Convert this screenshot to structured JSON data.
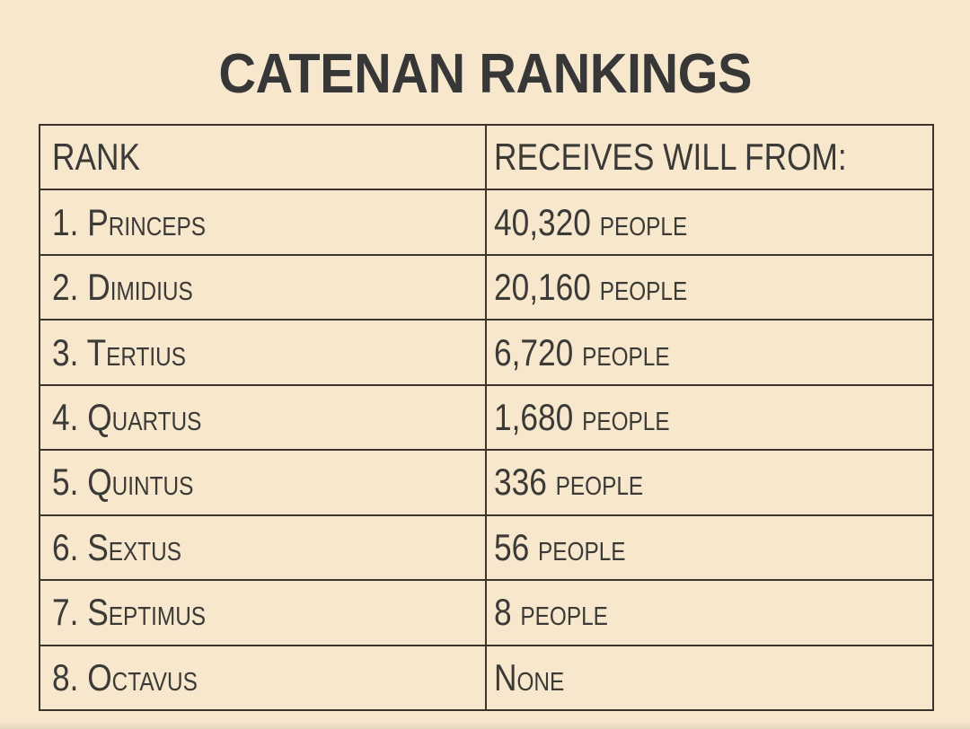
{
  "page": {
    "title": "CATENAN RANKINGS",
    "background_color": "#F7E7CD",
    "border_color": "#3B352C",
    "text_color": "#3C3A36",
    "title_color": "#373737"
  },
  "table": {
    "headers": {
      "rank": "RANK",
      "receives": "RECEIVES WILL FROM:"
    },
    "rows": [
      {
        "rank": "1. Princeps",
        "receives": "40,320 people"
      },
      {
        "rank": "2. Dimidius",
        "receives": "20,160 people"
      },
      {
        "rank": "3. Tertius",
        "receives": "6,720 people"
      },
      {
        "rank": "4. Quartus",
        "receives": "1,680 people"
      },
      {
        "rank": "5. Quintus",
        "receives": "336 people"
      },
      {
        "rank": "6. Sextus",
        "receives": "56 people"
      },
      {
        "rank": "7. Septimus",
        "receives": "8 people"
      },
      {
        "rank": "8. Octavus",
        "receives": "None"
      }
    ]
  },
  "chart_data": {
    "type": "table",
    "title": "CATENAN RANKINGS",
    "columns": [
      "RANK",
      "RECEIVES WILL FROM:"
    ],
    "rows": [
      {
        "rank": 1,
        "name": "Princeps",
        "receives_will_from": 40320,
        "display": "40,320 people"
      },
      {
        "rank": 2,
        "name": "Dimidius",
        "receives_will_from": 20160,
        "display": "20,160 people"
      },
      {
        "rank": 3,
        "name": "Tertius",
        "receives_will_from": 6720,
        "display": "6,720 people"
      },
      {
        "rank": 4,
        "name": "Quartus",
        "receives_will_from": 1680,
        "display": "1,680 people"
      },
      {
        "rank": 5,
        "name": "Quintus",
        "receives_will_from": 336,
        "display": "336 people"
      },
      {
        "rank": 6,
        "name": "Sextus",
        "receives_will_from": 56,
        "display": "56 people"
      },
      {
        "rank": 7,
        "name": "Septimus",
        "receives_will_from": 8,
        "display": "8 people"
      },
      {
        "rank": 8,
        "name": "Octavus",
        "receives_will_from": 0,
        "display": "None"
      }
    ],
    "layout": {
      "grid": true,
      "header_row": true,
      "columns_equal_width": true
    }
  }
}
